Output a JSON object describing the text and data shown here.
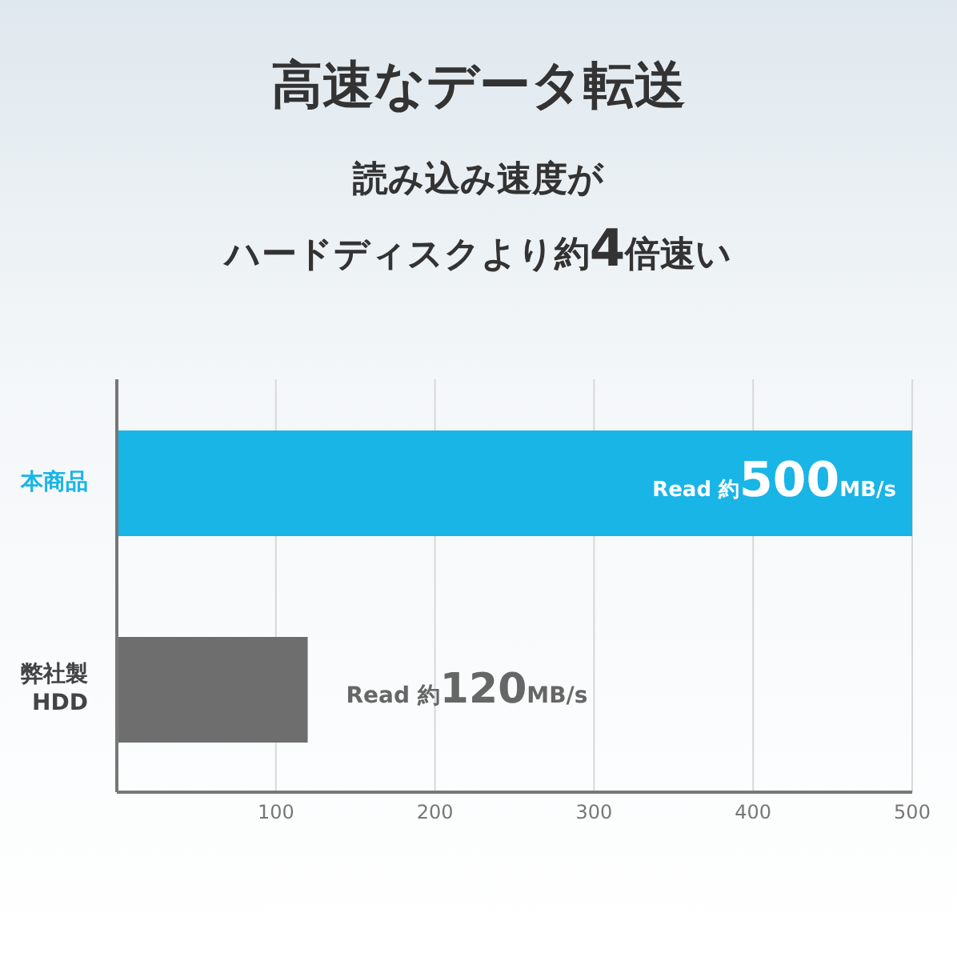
{
  "chart_data": {
    "type": "bar",
    "orientation": "horizontal",
    "title": "高速なデータ転送",
    "subtitle": "読み込み速度が",
    "annotations": [
      "ハードディスクより約4倍速い"
    ],
    "categories": [
      "本商品",
      "弊社製\nHDD"
    ],
    "values": [
      500,
      120
    ],
    "colors": [
      "#19b5e6",
      "#6e6e6e"
    ],
    "value_labels": [
      "Read 約500MB/s",
      "Read 約120MB/s"
    ],
    "xlim": [
      0,
      500
    ],
    "xticks": [
      100,
      200,
      300,
      400,
      500
    ],
    "grid": "x"
  }
}
